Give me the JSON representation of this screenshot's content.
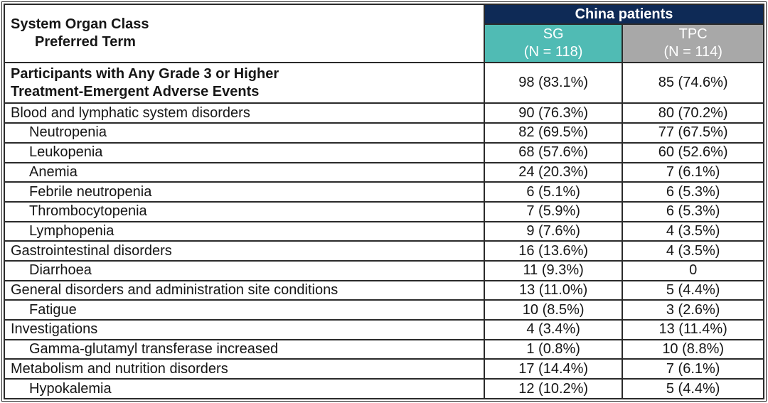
{
  "colors": {
    "navy": "#0e2a56",
    "teal": "#50bbb4",
    "gray": "#a8a8a8",
    "border": "#2a2a2a",
    "text": "#161616",
    "header-text": "#ffffff"
  },
  "header": {
    "soc_line1": "System Organ Class",
    "soc_line2": "Preferred Term",
    "group": "China patients",
    "sg_line1": "SG",
    "sg_line2": "(N = 118)",
    "tpc_line1": "TPC",
    "tpc_line2": "(N = 114)"
  },
  "summary_row": {
    "label_line1": "Participants with Any Grade 3 or Higher",
    "label_line2": "Treatment-Emergent Adverse Events",
    "sg": "98 (83.1%)",
    "tpc": "85 (74.6%)"
  },
  "rows": [
    {
      "label": "Blood and lymphatic system disorders",
      "indent": false,
      "sg": "90 (76.3%)",
      "tpc": "80 (70.2%)"
    },
    {
      "label": "Neutropenia",
      "indent": true,
      "sg": "82 (69.5%)",
      "tpc": "77 (67.5%)"
    },
    {
      "label": "Leukopenia",
      "indent": true,
      "sg": "68 (57.6%)",
      "tpc": "60 (52.6%)"
    },
    {
      "label": "Anemia",
      "indent": true,
      "sg": "24 (20.3%)",
      "tpc": "7 (6.1%)"
    },
    {
      "label": "Febrile neutropenia",
      "indent": true,
      "sg": "6 (5.1%)",
      "tpc": "6 (5.3%)"
    },
    {
      "label": "Thrombocytopenia",
      "indent": true,
      "sg": "7 (5.9%)",
      "tpc": "6 (5.3%)"
    },
    {
      "label": "Lymphopenia",
      "indent": true,
      "sg": "9 (7.6%)",
      "tpc": "4 (3.5%)"
    },
    {
      "label": "Gastrointestinal disorders",
      "indent": false,
      "sg": "16 (13.6%)",
      "tpc": "4 (3.5%)"
    },
    {
      "label": "Diarrhoea",
      "indent": true,
      "sg": "11 (9.3%)",
      "tpc": "0"
    },
    {
      "label": "General disorders and administration site conditions",
      "indent": false,
      "sg": "13 (11.0%)",
      "tpc": "5 (4.4%)"
    },
    {
      "label": "Fatigue",
      "indent": true,
      "sg": "10 (8.5%)",
      "tpc": "3 (2.6%)"
    },
    {
      "label": "Investigations",
      "indent": false,
      "sg": "4 (3.4%)",
      "tpc": "13 (11.4%)"
    },
    {
      "label": "Gamma-glutamyl transferase increased",
      "indent": true,
      "sg": "1 (0.8%)",
      "tpc": "10 (8.8%)"
    },
    {
      "label": "Metabolism and nutrition disorders",
      "indent": false,
      "sg": "17 (14.4%)",
      "tpc": "7 (6.1%)"
    },
    {
      "label": "Hypokalemia",
      "indent": true,
      "sg": "12 (10.2%)",
      "tpc": "5 (4.4%)"
    }
  ]
}
